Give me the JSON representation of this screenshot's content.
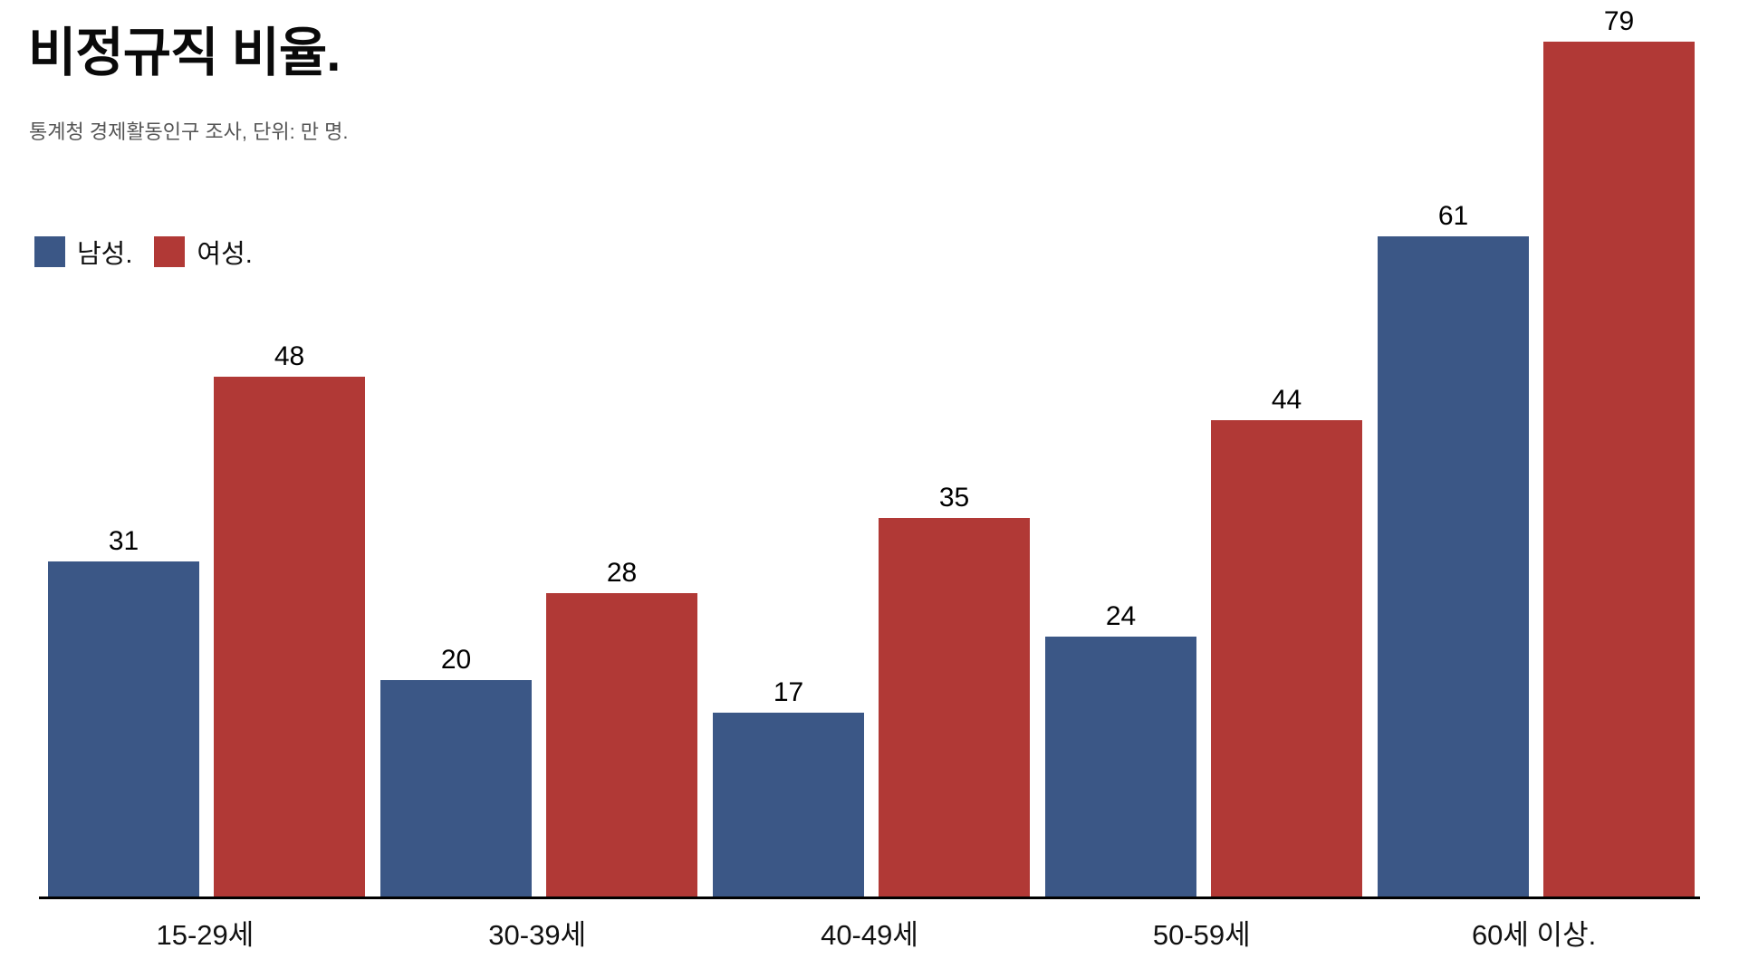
{
  "header": {
    "title": "비정규직 비율.",
    "subtitle": "통계청 경제활동인구 조사, 단위: 만 명."
  },
  "legend": {
    "items": [
      {
        "label": "남성.",
        "color": "#3B5786"
      },
      {
        "label": "여성.",
        "color": "#B13936"
      }
    ]
  },
  "chart_data": {
    "type": "bar",
    "title": "비정규직 비율.",
    "subtitle": "통계청 경제활동인구 조사, 단위: 만 명.",
    "categories": [
      "15-29세",
      "30-39세",
      "40-49세",
      "50-59세",
      "60세 이상."
    ],
    "series": [
      {
        "name": "남성.",
        "color": "#3B5786",
        "values": [
          31,
          20,
          17,
          24,
          61
        ]
      },
      {
        "name": "여성.",
        "color": "#B13936",
        "values": [
          48,
          28,
          35,
          44,
          79
        ]
      }
    ],
    "value_labels": [
      [
        "31",
        "20",
        "17",
        "24",
        "61"
      ],
      [
        "48",
        "28",
        "35",
        "44",
        "79"
      ]
    ],
    "ylim": [
      0,
      80
    ],
    "grid": false,
    "y_axis_visible": false,
    "legend_position": "top-left",
    "axis_line_color": "#000000"
  }
}
